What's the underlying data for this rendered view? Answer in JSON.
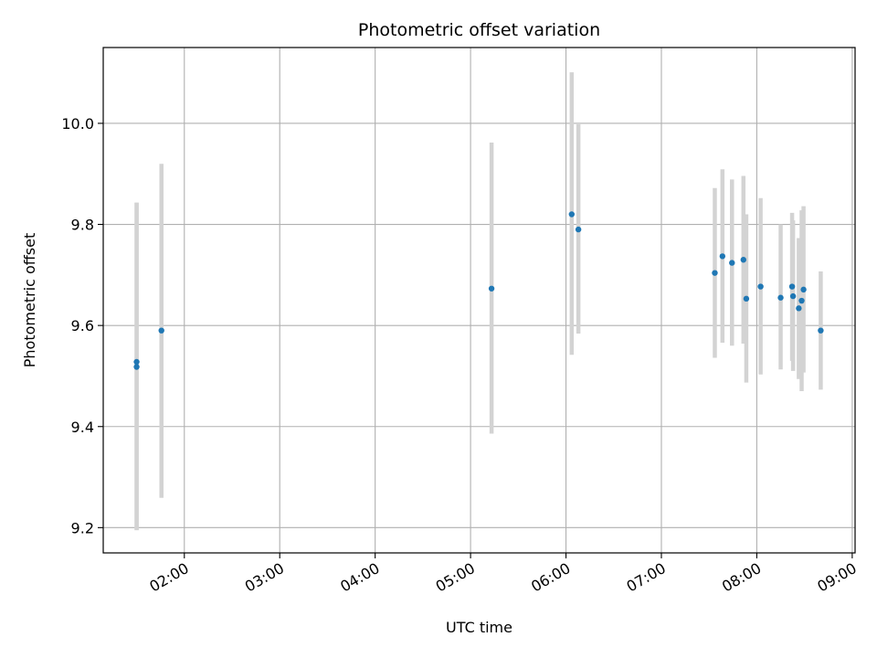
{
  "chart_data": {
    "type": "scatter",
    "title": "Photometric offset variation",
    "xlabel": "UTC time",
    "ylabel": "Photometric offset",
    "x_unit": "hours UTC",
    "xlim": [
      1.15,
      9.03
    ],
    "ylim": [
      9.15,
      10.15
    ],
    "x_ticks": [
      2,
      3,
      4,
      5,
      6,
      7,
      8,
      9
    ],
    "x_tick_labels": [
      "02:00",
      "03:00",
      "04:00",
      "05:00",
      "06:00",
      "07:00",
      "08:00",
      "09:00"
    ],
    "y_ticks": [
      9.2,
      9.4,
      9.6,
      9.8,
      10.0
    ],
    "y_tick_labels": [
      "9.2",
      "9.4",
      "9.6",
      "9.8",
      "10.0"
    ],
    "grid": true,
    "colors": {
      "point": "#1f77b4",
      "errorbar": "#d3d3d3",
      "grid": "#b0b0b0"
    },
    "series": [
      {
        "points": [
          {
            "x": 1.5,
            "y": 9.528,
            "low": 9.195,
            "high": 9.843
          },
          {
            "x": 1.5,
            "y": 9.518,
            "low": 9.195,
            "high": 9.843
          },
          {
            "x": 1.76,
            "y": 9.59,
            "low": 9.259,
            "high": 9.92
          },
          {
            "x": 5.22,
            "y": 9.673,
            "low": 9.386,
            "high": 9.962
          },
          {
            "x": 6.06,
            "y": 9.82,
            "low": 9.542,
            "high": 10.101
          },
          {
            "x": 6.13,
            "y": 9.79,
            "low": 9.584,
            "high": 9.998
          },
          {
            "x": 7.56,
            "y": 9.704,
            "low": 9.536,
            "high": 9.872
          },
          {
            "x": 7.64,
            "y": 9.737,
            "low": 9.566,
            "high": 9.909
          },
          {
            "x": 7.74,
            "y": 9.724,
            "low": 9.56,
            "high": 9.889
          },
          {
            "x": 7.86,
            "y": 9.73,
            "low": 9.564,
            "high": 9.896
          },
          {
            "x": 7.89,
            "y": 9.653,
            "low": 9.487,
            "high": 9.82
          },
          {
            "x": 8.04,
            "y": 9.677,
            "low": 9.503,
            "high": 9.852
          },
          {
            "x": 8.25,
            "y": 9.655,
            "low": 9.513,
            "high": 9.8
          },
          {
            "x": 8.37,
            "y": 9.677,
            "low": 9.53,
            "high": 9.823
          },
          {
            "x": 8.38,
            "y": 9.658,
            "low": 9.51,
            "high": 9.808
          },
          {
            "x": 8.44,
            "y": 9.634,
            "low": 9.494,
            "high": 9.773
          },
          {
            "x": 8.47,
            "y": 9.649,
            "low": 9.47,
            "high": 9.828
          },
          {
            "x": 8.49,
            "y": 9.671,
            "low": 9.507,
            "high": 9.836
          },
          {
            "x": 8.67,
            "y": 9.59,
            "low": 9.473,
            "high": 9.707
          }
        ]
      }
    ]
  }
}
